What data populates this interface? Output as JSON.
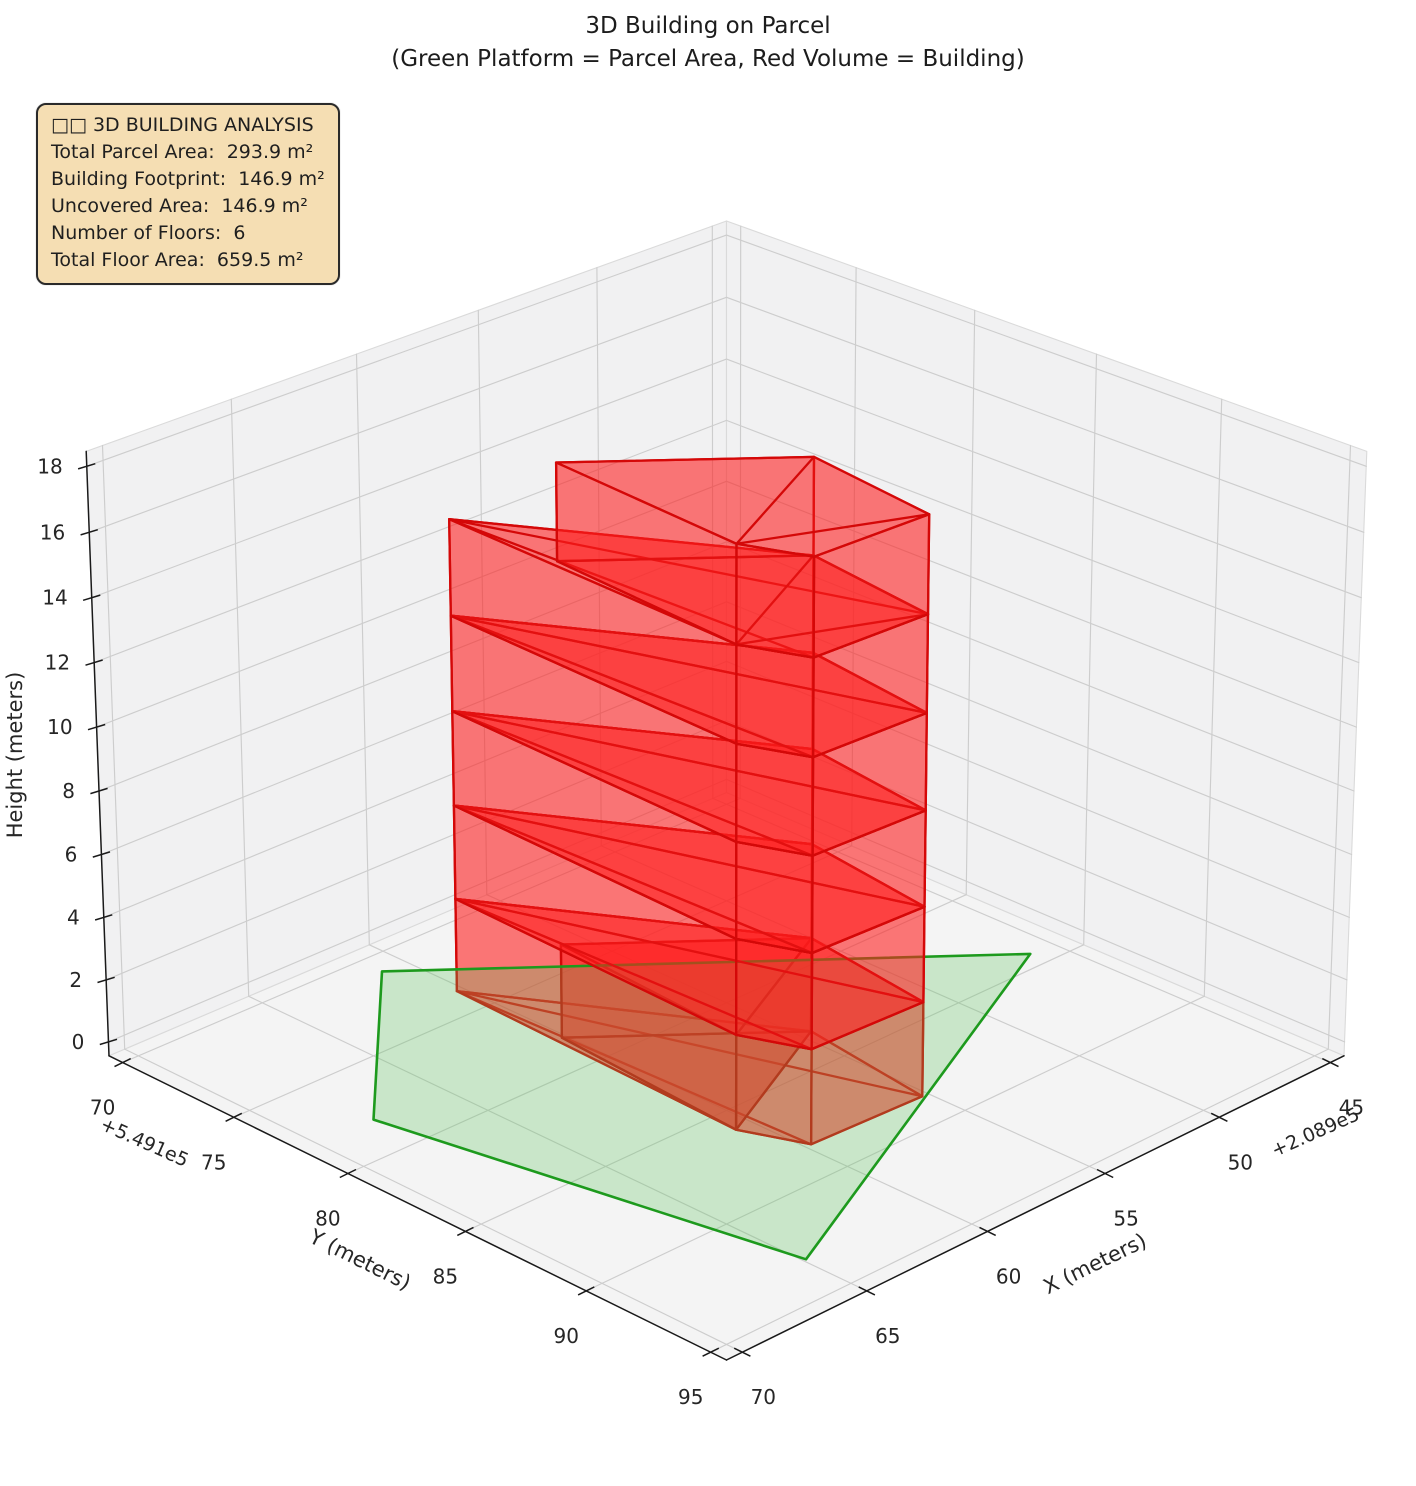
{
  "title": {
    "line1": "3D Building on Parcel",
    "line2": "(Green Platform = Parcel Area, Red Volume = Building)"
  },
  "info_box": {
    "header": "□□ 3D BUILDING ANALYSIS",
    "lines": [
      "Total Parcel Area:  293.9 m²",
      "Building Footprint:  146.9 m²",
      "Uncovered Area:  146.9 m²",
      "Number of Floors:  6",
      "Total Floor Area:  659.5 m²"
    ]
  },
  "chart_data": {
    "type": "3d-building-extrusion",
    "title": "3D Building on Parcel (Green Platform = Parcel Area, Red Volume = Building)",
    "legend_note": "Green Platform = Parcel Area, Red Volume = Building",
    "stats": {
      "total_parcel_area_m2": 293.9,
      "building_footprint_m2": 146.9,
      "uncovered_area_m2": 146.9,
      "number_of_floors": 6,
      "total_floor_area_m2": 659.5,
      "floor_height_m": 3,
      "building_height_m": 18
    },
    "axes": {
      "x": {
        "label": "X (meters)",
        "ticks": [
          70,
          65,
          60,
          55,
          50,
          45
        ],
        "offset_text": "+2.089e5",
        "range": [
          45,
          70
        ]
      },
      "y": {
        "label": "Y (meters)",
        "ticks": [
          70,
          75,
          80,
          85,
          90,
          95
        ],
        "offset_text": "+5.491e5",
        "range": [
          70,
          95
        ]
      },
      "z": {
        "label": "Height (meters)",
        "ticks": [
          0,
          2,
          4,
          6,
          8,
          10,
          12,
          14,
          16,
          18
        ],
        "range": [
          0,
          18
        ]
      }
    },
    "parcel_polygon_xy": [
      [
        61.6,
        71.7
      ],
      [
        68.4,
        78.7
      ],
      [
        65.5,
        93.7
      ],
      [
        46.7,
        84.9
      ]
    ],
    "footprints": {
      "pentagon_lower": {
        "points": [
          [
            60.9,
            74.3
          ],
          [
            55.2,
            83.8
          ],
          [
            55.9,
            89.1
          ],
          [
            60.4,
            88.9
          ],
          [
            61.3,
            86.7
          ]
        ],
        "back_sides": [
          [
            0,
            1
          ],
          [
            1,
            2
          ]
        ],
        "front_sides": [
          [
            4,
            0
          ],
          [
            2,
            3
          ],
          [
            3,
            4
          ]
        ],
        "diagonals": [
          [
            0,
            2
          ],
          [
            0,
            3
          ]
        ]
      },
      "pentagon_top": {
        "points": [
          [
            60.8,
            78.8
          ],
          [
            55.2,
            83.8
          ],
          [
            55.9,
            89.1
          ],
          [
            60.4,
            88.9
          ],
          [
            61.3,
            86.7
          ]
        ],
        "back_sides": [
          [
            0,
            1
          ],
          [
            1,
            2
          ]
        ],
        "front_sides": [
          [
            4,
            0
          ],
          [
            2,
            3
          ],
          [
            3,
            4
          ]
        ],
        "diagonals": [
          [
            4,
            1
          ],
          [
            4,
            2
          ]
        ]
      },
      "annex_triangle": {
        "points": [
          [
            60.8,
            78.8
          ],
          [
            55.2,
            83.8
          ],
          [
            61.3,
            86.7
          ]
        ],
        "back_sides": [
          [
            0,
            1
          ]
        ],
        "front_sides": [
          [
            2,
            0
          ],
          [
            1,
            2
          ]
        ],
        "diagonals": []
      }
    },
    "render_sequence": [
      {
        "kind": "prism",
        "footprint": "pentagon_lower",
        "z": [
          0,
          3
        ],
        "name": "building-floor-1"
      },
      {
        "kind": "prism",
        "footprint": "annex_triangle",
        "z": [
          0,
          3
        ],
        "name": "building-floor-1-annex"
      },
      {
        "kind": "parcel",
        "name": "parcel-polygon"
      },
      {
        "kind": "prism",
        "footprint": "pentagon_lower",
        "z": [
          3,
          6
        ],
        "name": "building-floor-2"
      },
      {
        "kind": "prism",
        "footprint": "pentagon_lower",
        "z": [
          6,
          9
        ],
        "name": "building-floor-3"
      },
      {
        "kind": "prism",
        "footprint": "pentagon_lower",
        "z": [
          9,
          12
        ],
        "name": "building-floor-4"
      },
      {
        "kind": "prism",
        "footprint": "pentagon_lower",
        "z": [
          12,
          15
        ],
        "name": "building-floor-5"
      },
      {
        "kind": "prism",
        "footprint": "pentagon_top",
        "z": [
          15,
          18
        ],
        "name": "building-floor-6"
      }
    ],
    "colors": {
      "building_edge": "#d40808",
      "building_fill": "rgba(255,30,30,0.36)",
      "parcel_edge": "#1d9a1d",
      "parcel_fill": "rgba(90,195,90,0.28)",
      "pane_wall": "#f1f1f2",
      "pane_floor": "#f4f4f4",
      "grid": "#cdcdcd",
      "pane_edge": "#dadada",
      "spine": "#1a1a1a",
      "tick_text": "#262626",
      "info_bg": "#f5deb3",
      "figure_bg": "#ffffff"
    }
  }
}
